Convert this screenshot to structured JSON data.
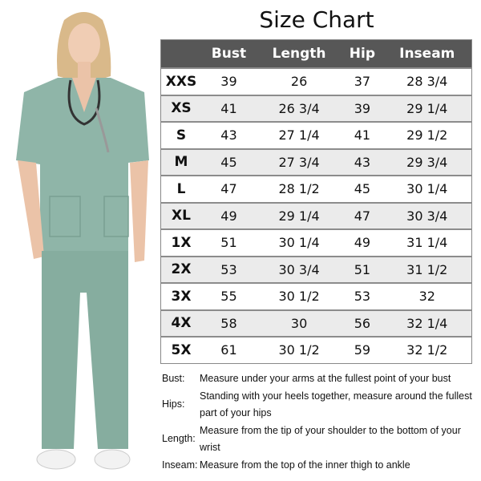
{
  "title": "Size Chart",
  "colors": {
    "header_bg": "#575757",
    "alt_row": "#ebebeb",
    "scrubs": "#8fb5a8"
  },
  "table": {
    "headers": [
      "",
      "Bust",
      "Length",
      "Hip",
      "Inseam"
    ],
    "rows": [
      [
        "XXS",
        "39",
        "26",
        "37",
        "28 3/4"
      ],
      [
        "XS",
        "41",
        "26 3/4",
        "39",
        "29 1/4"
      ],
      [
        "S",
        "43",
        "27 1/4",
        "41",
        "29 1/2"
      ],
      [
        "M",
        "45",
        "27 3/4",
        "43",
        "29 3/4"
      ],
      [
        "L",
        "47",
        "28 1/2",
        "45",
        "30 1/4"
      ],
      [
        "XL",
        "49",
        "29 1/4",
        "47",
        "30 3/4"
      ],
      [
        "1X",
        "51",
        "30 1/4",
        "49",
        "31 1/4"
      ],
      [
        "2X",
        "53",
        "30 3/4",
        "51",
        "31 1/2"
      ],
      [
        "3X",
        "55",
        "30 1/2",
        "53",
        "32"
      ],
      [
        "4X",
        "58",
        "30",
        "56",
        "32 1/4"
      ],
      [
        "5X",
        "61",
        "30 1/2",
        "59",
        "32 1/2"
      ]
    ]
  },
  "notes": [
    {
      "label": "Bust:",
      "text": "Measure under your arms at the fullest point of your bust"
    },
    {
      "label": "Hips:",
      "text": "Standing with your heels together, measure around the fullest part of your hips"
    },
    {
      "label": "Length:",
      "text": "Measure from the tip of your shoulder to the bottom of your wrist"
    },
    {
      "label": "Inseam:",
      "text": "Measure from the top of the inner thigh to ankle"
    }
  ]
}
